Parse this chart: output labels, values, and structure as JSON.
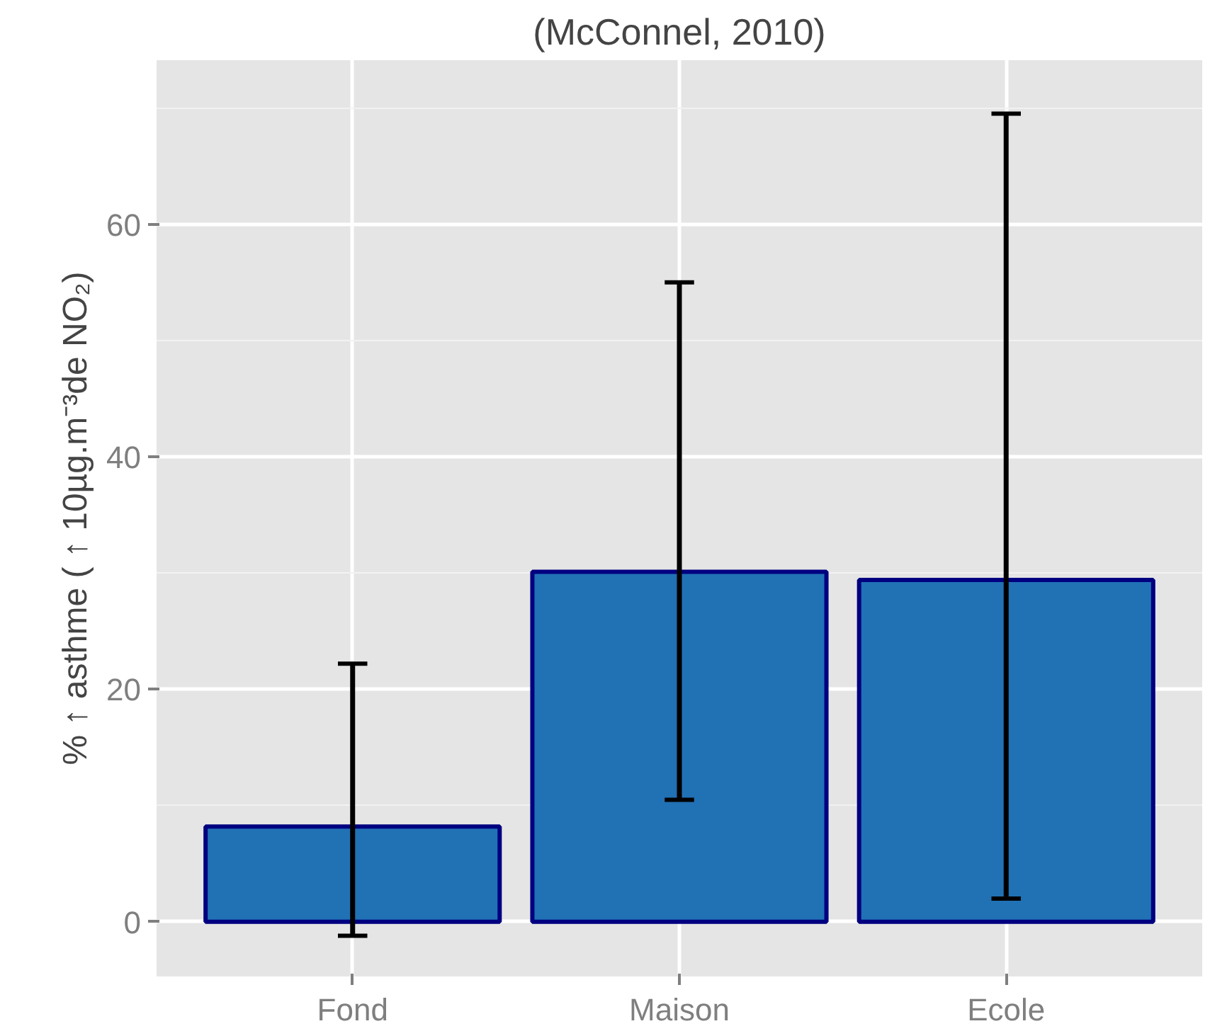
{
  "chart_data": {
    "type": "bar",
    "title": "(McConnel, 2010)",
    "ylabel": "% ↑ asthme ( ↑ 10µg.m⁻³de NO₂)",
    "categories": [
      "Fond",
      "Maison",
      "Ecole"
    ],
    "values": [
      8.2,
      30.1,
      29.4
    ],
    "color": "#2171b5",
    "errors": [
      [
        -1.2,
        22.2
      ],
      [
        10.5,
        55.0
      ],
      [
        2.0,
        69.5
      ]
    ],
    "ylim": [
      -4.7,
      74.1
    ],
    "yticks": [
      0,
      20,
      40,
      60
    ],
    "grid": true
  }
}
